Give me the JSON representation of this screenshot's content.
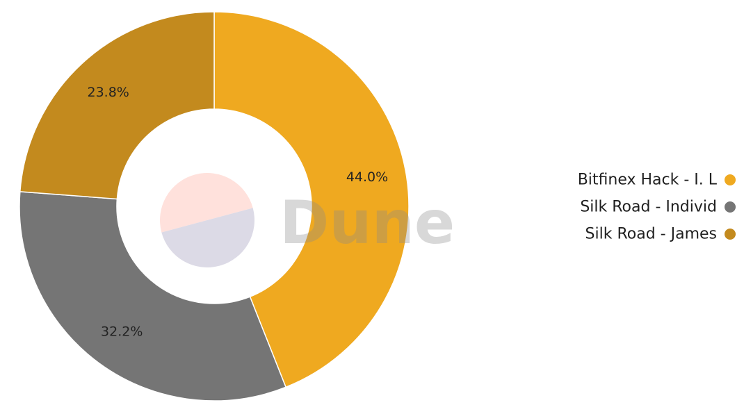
{
  "chart_data": {
    "type": "pie",
    "style": "donut",
    "slices": [
      {
        "label": "Bitfinex Hack - I. L",
        "value": 44.0,
        "value_label": "44.0%",
        "color": "#EFA920"
      },
      {
        "label": "Silk Road - Individ",
        "value": 32.2,
        "value_label": "32.2%",
        "color": "#757575"
      },
      {
        "label": "Silk Road - James",
        "value": 23.8,
        "value_label": "23.8%",
        "color": "#C38A1E"
      }
    ],
    "legend_position": "right",
    "start_angle": "top, clockwise"
  },
  "watermark": {
    "text": "Dune",
    "logo_colors": [
      "#FFE1DC",
      "#DCDAE6"
    ]
  }
}
